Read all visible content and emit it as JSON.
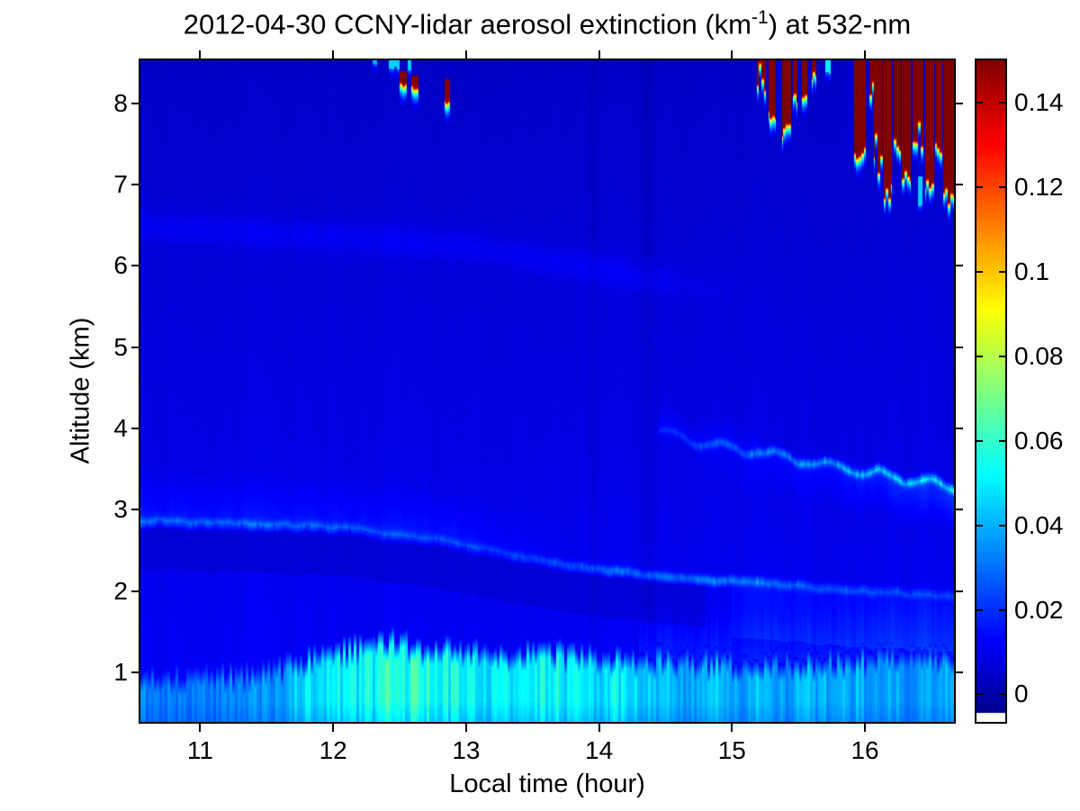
{
  "figure": {
    "title": {
      "prefix": "2012-04-30 CCNY-lidar aerosol extinction (km",
      "superscript": "-1",
      "suffix": ") at 532-nm"
    },
    "x_axis": {
      "label": "Local time (hour)",
      "ticks": [
        {
          "value": 11,
          "label": "11"
        },
        {
          "value": 12,
          "label": "12"
        },
        {
          "value": 13,
          "label": "13"
        },
        {
          "value": 14,
          "label": "14"
        },
        {
          "value": 15,
          "label": "15"
        },
        {
          "value": 16,
          "label": "16"
        }
      ]
    },
    "y_axis": {
      "label": "Altitude (km)",
      "ticks": [
        {
          "value": 1,
          "label": "1"
        },
        {
          "value": 2,
          "label": "2"
        },
        {
          "value": 3,
          "label": "3"
        },
        {
          "value": 4,
          "label": "4"
        },
        {
          "value": 5,
          "label": "5"
        },
        {
          "value": 6,
          "label": "6"
        },
        {
          "value": 7,
          "label": "7"
        },
        {
          "value": 8,
          "label": "8"
        }
      ]
    },
    "colorbar": {
      "ticks": [
        {
          "value": 0,
          "label": "0"
        },
        {
          "value": 0.02,
          "label": "0.02"
        },
        {
          "value": 0.04,
          "label": "0.04"
        },
        {
          "value": 0.06,
          "label": "0.06"
        },
        {
          "value": 0.08,
          "label": "0.08"
        },
        {
          "value": 0.1,
          "label": "0.1"
        },
        {
          "value": 0.12,
          "label": "0.12"
        },
        {
          "value": 0.14,
          "label": "0.14"
        }
      ]
    }
  },
  "chart_data": {
    "type": "heatmap",
    "title": "2012-04-30 CCNY-lidar aerosol extinction (km^-1) at 532-nm",
    "xlabel": "Local time (hour)",
    "ylabel": "Altitude (km)",
    "x_range_hours": [
      10.55,
      16.67
    ],
    "y_range_km": [
      0.39,
      8.53
    ],
    "clim_per_km": [
      -0.0065,
      0.15
    ],
    "colorbar_tick_values": [
      0,
      0.02,
      0.04,
      0.06,
      0.08,
      0.1,
      0.12,
      0.14
    ],
    "colormap": "jet",
    "below_min_color": "#ffffff",
    "grid": false,
    "model": {
      "seed": 20120430,
      "base": {
        "v0": 0.0125,
        "slope_per_km": -0.00095,
        "streak_amp": 0.16,
        "pixel_noise": 0.0018
      },
      "dark_columns": [
        [
          13.93,
          13.99,
          -0.0015
        ],
        [
          14.32,
          14.4,
          -0.002
        ]
      ],
      "boundary_layer": {
        "top_km": [
          [
            10.55,
            1.02
          ],
          [
            11.3,
            1.03
          ],
          [
            11.7,
            1.16
          ],
          [
            12.0,
            1.33
          ],
          [
            12.45,
            1.46
          ],
          [
            12.8,
            1.34
          ],
          [
            13.3,
            1.33
          ],
          [
            14.0,
            1.29
          ],
          [
            14.6,
            1.23
          ],
          [
            15.2,
            1.19
          ],
          [
            15.8,
            1.23
          ],
          [
            16.3,
            1.28
          ],
          [
            16.67,
            1.3
          ]
        ],
        "amplitude": [
          [
            10.55,
            0.02
          ],
          [
            11.55,
            0.022
          ],
          [
            11.75,
            0.034
          ],
          [
            12.0,
            0.04
          ],
          [
            12.5,
            0.044
          ],
          [
            13.0,
            0.042
          ],
          [
            13.6,
            0.041
          ],
          [
            14.2,
            0.037
          ],
          [
            14.5,
            0.03
          ],
          [
            15.3,
            0.028
          ],
          [
            15.9,
            0.03
          ],
          [
            16.4,
            0.026
          ],
          [
            16.67,
            0.028
          ]
        ],
        "spike_km": 0.13,
        "edge_km": 0.22,
        "amp_noise": 0.2,
        "veil": {
          "t_start": 14.3,
          "depth_km": 0.6,
          "v": 0.006
        }
      },
      "residual_line": {
        "alt_km": [
          [
            10.55,
            2.86
          ],
          [
            12.0,
            2.78
          ],
          [
            12.8,
            2.62
          ],
          [
            13.4,
            2.42
          ],
          [
            13.9,
            2.28
          ],
          [
            14.5,
            2.18
          ],
          [
            15.0,
            2.12
          ],
          [
            15.6,
            2.05
          ],
          [
            16.1,
            2.0
          ],
          [
            16.67,
            1.95
          ]
        ],
        "amp": [
          [
            10.55,
            0.014
          ],
          [
            11.6,
            0.013
          ],
          [
            12.4,
            0.011
          ],
          [
            13.0,
            0.009
          ],
          [
            13.7,
            0.012
          ],
          [
            14.2,
            0.017
          ],
          [
            14.8,
            0.02
          ],
          [
            15.3,
            0.017
          ],
          [
            15.8,
            0.012
          ],
          [
            16.2,
            0.01
          ],
          [
            16.67,
            0.009
          ]
        ],
        "sigma_km": 0.06,
        "above_glow": {
          "t_end": 13.8,
          "depth_km": 0.65,
          "v": 0.006
        },
        "below_dark": {
          "t_end": 14.8,
          "depth_km": 0.5,
          "v": -0.0035
        },
        "below_bright": {
          "t_start": 15.0,
          "depth_km": 0.7,
          "v": 0.004
        }
      },
      "upper_line": {
        "t_start": 14.45,
        "alt_km": [
          [
            14.45,
            3.95
          ],
          [
            14.8,
            3.82
          ],
          [
            15.1,
            3.73
          ],
          [
            15.5,
            3.62
          ],
          [
            15.9,
            3.5
          ],
          [
            16.2,
            3.42
          ],
          [
            16.67,
            3.28
          ]
        ],
        "amp": [
          [
            14.45,
            0.008
          ],
          [
            14.9,
            0.012
          ],
          [
            15.4,
            0.018
          ],
          [
            15.9,
            0.024
          ],
          [
            16.3,
            0.026
          ],
          [
            16.67,
            0.028
          ]
        ],
        "sigma_km": 0.055,
        "wiggle_km": 0.05,
        "wiggle_freq": 16,
        "below_glow_amp": [
          [
            14.45,
            0.0
          ],
          [
            15.2,
            0.004
          ],
          [
            15.9,
            0.008
          ],
          [
            16.67,
            0.013
          ]
        ],
        "below_glow_depth_km": 0.55,
        "above_glow": {
          "t_end": 15.2,
          "depth_km": 0.35,
          "v": 0.004
        }
      },
      "faint_band": {
        "alt_km": [
          [
            10.55,
            6.5
          ],
          [
            13.0,
            6.25
          ],
          [
            15.2,
            5.6
          ]
        ],
        "sigma_km": 0.2,
        "v": 0.0045,
        "fade_start": 14.2,
        "t_end": 15.2
      },
      "cloud_core_v": 0.3,
      "cloud_fringe_km": 0.09,
      "cloud_fringe_v": 0.17,
      "cloud_jitter_km": 0.12,
      "clouds": [
        [
          15.19,
          15.255,
          8.6,
          8.22
        ],
        [
          15.275,
          15.33,
          8.6,
          7.92
        ],
        [
          15.375,
          15.445,
          8.6,
          7.72
        ],
        [
          15.455,
          15.49,
          8.6,
          8.08
        ],
        [
          15.525,
          15.565,
          8.6,
          8.05
        ],
        [
          15.6,
          15.635,
          8.6,
          8.3
        ],
        [
          15.92,
          16.005,
          8.6,
          7.42
        ],
        [
          16.035,
          16.065,
          8.6,
          8.2
        ],
        [
          16.07,
          16.135,
          8.6,
          7.28
        ],
        [
          16.14,
          16.2,
          8.6,
          6.95
        ],
        [
          16.215,
          16.27,
          8.6,
          7.55
        ],
        [
          16.28,
          16.345,
          8.6,
          7.12
        ],
        [
          16.36,
          16.44,
          8.6,
          7.45
        ],
        [
          16.45,
          16.52,
          8.6,
          7.0
        ],
        [
          16.53,
          16.585,
          8.6,
          7.45
        ],
        [
          16.59,
          16.67,
          8.6,
          6.88
        ]
      ],
      "spots": [
        [
          12.5,
          12.555,
          8.4,
          8.27,
          0.3
        ],
        [
          12.59,
          12.64,
          8.34,
          8.24,
          0.3
        ],
        [
          12.84,
          12.88,
          8.3,
          8.03,
          0.3
        ],
        [
          12.42,
          12.5,
          8.53,
          8.44,
          0.045
        ],
        [
          12.56,
          12.585,
          8.53,
          8.4,
          0.045
        ],
        [
          12.3,
          12.33,
          8.53,
          8.47,
          0.04
        ],
        [
          15.7,
          15.74,
          8.53,
          8.38,
          0.05
        ],
        [
          16.4,
          16.43,
          7.1,
          6.74,
          0.045
        ]
      ]
    }
  }
}
